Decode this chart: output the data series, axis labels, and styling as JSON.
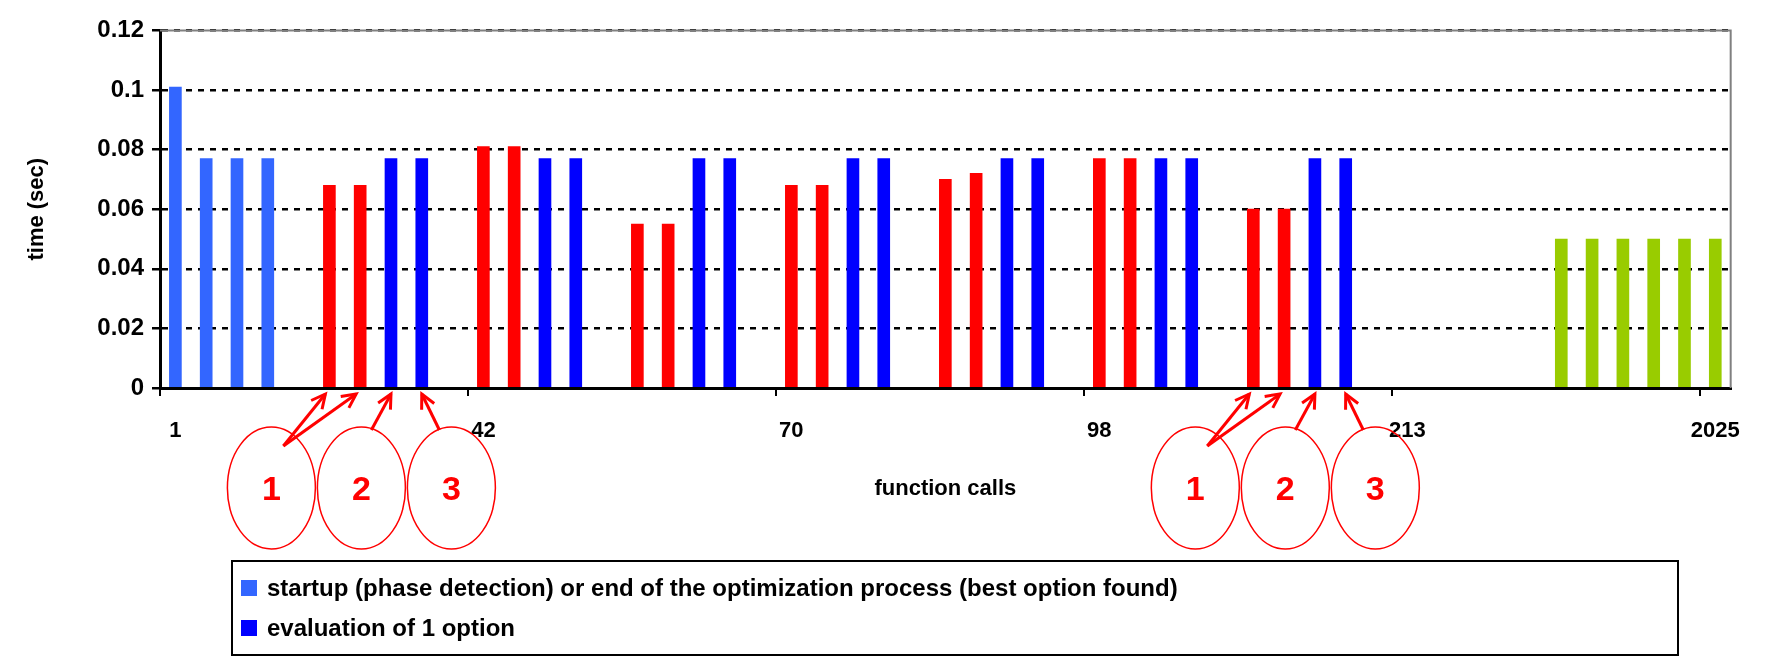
{
  "chart_data": {
    "type": "bar",
    "xlabel": "function calls",
    "ylabel": "time (sec)",
    "categories": [
      "1",
      null,
      null,
      null,
      null,
      null,
      null,
      null,
      null,
      null,
      "42",
      null,
      null,
      null,
      null,
      null,
      null,
      null,
      null,
      null,
      "70",
      null,
      null,
      null,
      null,
      null,
      null,
      null,
      null,
      null,
      "98",
      null,
      null,
      null,
      null,
      null,
      null,
      null,
      null,
      null,
      "213",
      null,
      null,
      null,
      null,
      null,
      null,
      null,
      null,
      null,
      "2025"
    ],
    "series": [
      {
        "name": "startup (phase detection) or end of the optimization process (best option found)",
        "color": "#3366ff",
        "values": [
          0.101,
          0.077,
          0.077,
          0.077,
          null,
          null,
          null,
          null,
          null,
          null,
          null,
          null,
          null,
          null,
          null,
          null,
          null,
          null,
          null,
          null,
          null,
          null,
          null,
          null,
          null,
          null,
          null,
          null,
          null,
          null,
          null,
          null,
          null,
          null,
          null,
          null,
          null,
          null,
          null,
          null,
          null,
          null,
          null,
          null,
          null,
          null,
          null,
          null,
          null,
          null,
          null
        ]
      },
      {
        "name": "evaluation of 1 option",
        "color": "#0000ff",
        "values": [
          null,
          null,
          null,
          null,
          null,
          null,
          null,
          0.077,
          0.077,
          null,
          null,
          null,
          0.077,
          0.077,
          null,
          null,
          null,
          0.077,
          0.077,
          null,
          null,
          null,
          0.077,
          0.077,
          null,
          null,
          null,
          0.077,
          0.077,
          null,
          null,
          null,
          0.077,
          0.077,
          null,
          null,
          null,
          0.077,
          0.077,
          null,
          null,
          null,
          null,
          null,
          null,
          null,
          null,
          null,
          null,
          null,
          null
        ]
      },
      {
        "color": "#ff0000",
        "values": [
          null,
          null,
          null,
          null,
          null,
          0.068,
          0.068,
          null,
          null,
          null,
          0.081,
          0.081,
          null,
          null,
          null,
          0.055,
          0.055,
          null,
          null,
          null,
          0.068,
          0.068,
          null,
          null,
          null,
          0.07,
          0.072,
          null,
          null,
          null,
          0.077,
          0.077,
          null,
          null,
          null,
          0.06,
          0.06,
          null,
          null,
          null,
          null,
          null,
          null,
          null,
          null,
          null,
          null,
          null,
          null,
          null,
          null
        ]
      },
      {
        "color": "#99cc00",
        "values": [
          null,
          null,
          null,
          null,
          null,
          null,
          null,
          null,
          null,
          null,
          null,
          null,
          null,
          null,
          null,
          null,
          null,
          null,
          null,
          null,
          null,
          null,
          null,
          null,
          null,
          null,
          null,
          null,
          null,
          null,
          null,
          null,
          null,
          null,
          null,
          null,
          null,
          null,
          null,
          null,
          null,
          null,
          null,
          null,
          null,
          0.05,
          0.05,
          0.05,
          0.05,
          0.05,
          0.05
        ]
      }
    ],
    "ylim": [
      0,
      0.12
    ],
    "yticks": [
      0,
      0.02,
      0.04,
      0.06,
      0.08,
      0.1,
      0.12
    ],
    "grid": "y",
    "legend": "bottom",
    "annotations": [
      "1",
      "2",
      "3",
      "1",
      "2",
      "3"
    ]
  }
}
